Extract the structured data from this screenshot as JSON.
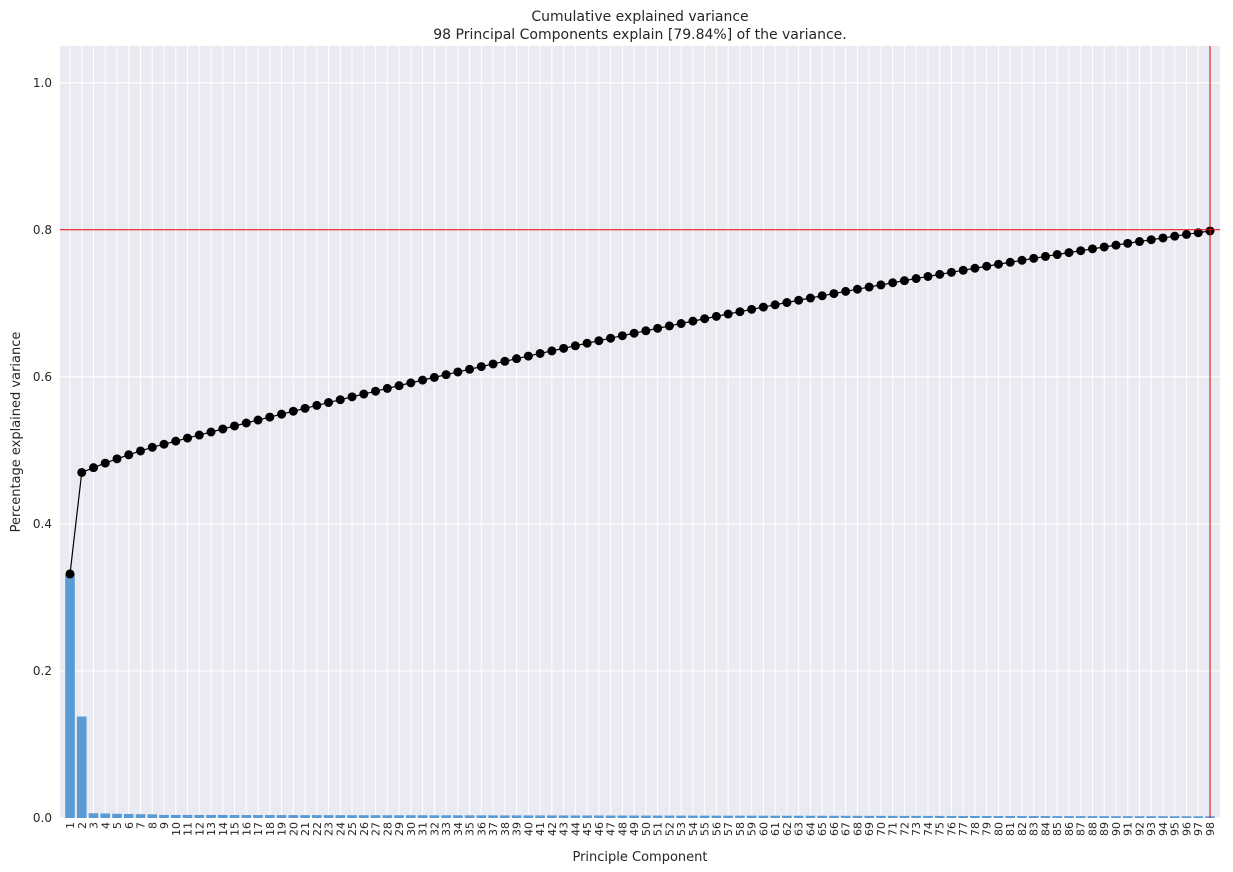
{
  "chart_data": {
    "type": "bar",
    "title": "Cumulative explained variance",
    "subtitle": "98 Principal Components explain [79.84%] of the variance.",
    "xlabel": "Principle Component",
    "ylabel": "Percentage explained variance",
    "ylim": [
      0,
      1.05
    ],
    "yticks": [
      "0.0",
      "0.2",
      "0.4",
      "0.6",
      "0.8",
      "1.0"
    ],
    "ytick_values": [
      0,
      0.2,
      0.4,
      0.6,
      0.8,
      1.0
    ],
    "n_components": 98,
    "explained_variance_first": [
      0.332,
      0.138,
      0.0065,
      0.0062,
      0.0058,
      0.0055,
      0.0052,
      0.005
    ],
    "explained_variance_tail_start": 0.0045,
    "explained_variance_tail_end": 0.0025,
    "cumulative_total": 0.7984,
    "threshold_line_y": 0.8,
    "threshold_line_x": 98,
    "grid": true,
    "colors": {
      "bar": "#5b9bd5",
      "line": "#000000",
      "marker": "#000000",
      "threshold": "#e00000",
      "axes_bg": "#eaeaf2",
      "grid": "#ffffff"
    }
  }
}
